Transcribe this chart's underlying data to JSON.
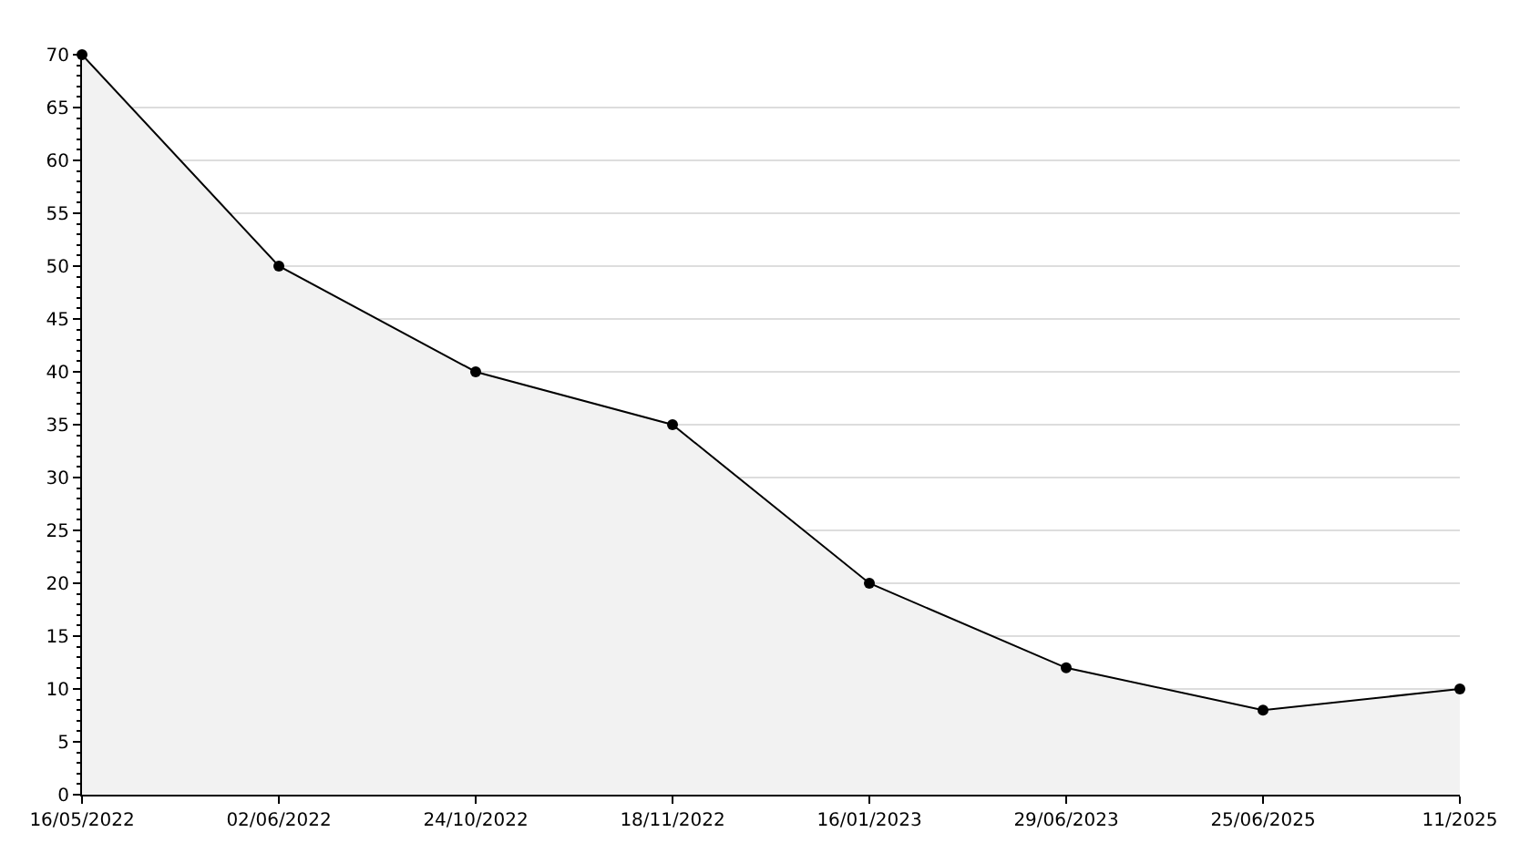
{
  "chart_data": {
    "type": "area",
    "categories": [
      "16/05/2022",
      "02/06/2022",
      "24/10/2022",
      "18/11/2022",
      "16/01/2023",
      "29/06/2023",
      "25/06/2025",
      "11/2025"
    ],
    "series": [
      {
        "color": "#000000",
        "values": [
          70,
          50,
          40,
          35,
          20,
          12,
          8,
          10
        ]
      }
    ],
    "ylim": [
      0,
      70
    ],
    "yticks": [
      0,
      5,
      10,
      15,
      20,
      25,
      30,
      35,
      40,
      45,
      50,
      55,
      60,
      65,
      70
    ],
    "grid": "y",
    "marker": "circle",
    "line_style": "solid"
  }
}
